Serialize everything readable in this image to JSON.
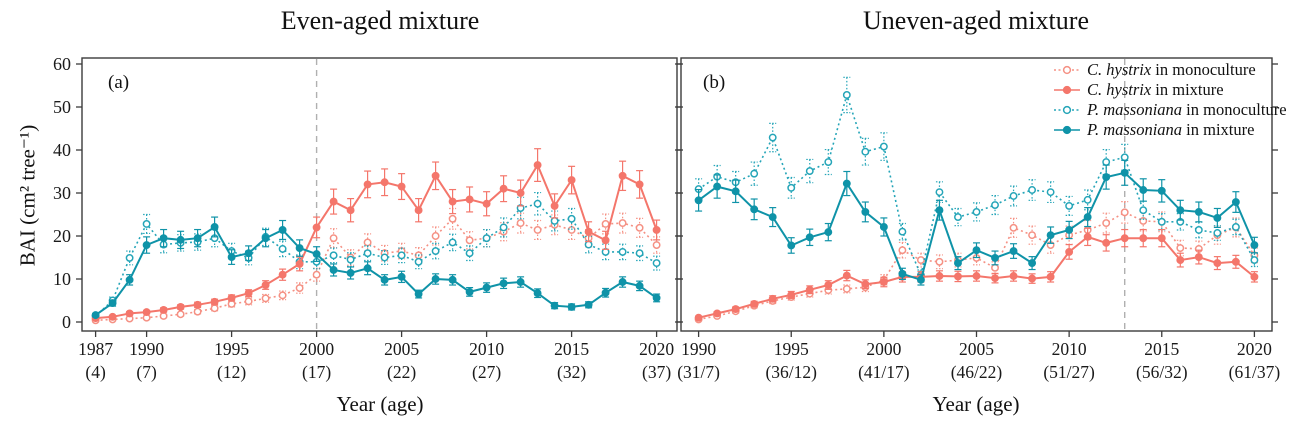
{
  "figure": {
    "titles": {
      "panel_a": "Even-aged mixture",
      "panel_b": "Uneven-aged mixture"
    },
    "panel_labels": {
      "a": "(a)",
      "b": "(b)"
    },
    "ylabel": "BAI (cm² tree⁻¹)",
    "xlabel": "Year (age)",
    "colors": {
      "ch_mono": "#f59184",
      "ch_mix": "#f4766b",
      "pm_mono": "#25a5b8",
      "pm_mix": "#0f93a8",
      "dashed_line": "#b0b0b0",
      "axis": "#3c3c3c",
      "text": "#1a1a1a"
    },
    "legend": [
      {
        "key": "ch_mono",
        "species": "C. hystrix",
        "rest": " in monoculture"
      },
      {
        "key": "ch_mix",
        "species": "C. hystrix",
        "rest": " in mixture"
      },
      {
        "key": "pm_mono",
        "species": "P. massoniana",
        "rest": " in monoculture"
      },
      {
        "key": "pm_mix",
        "species": "P. massoniana",
        "rest": " in mixture"
      }
    ]
  },
  "chart_data": [
    {
      "type": "line",
      "panel": "a",
      "title": "Even-aged mixture",
      "xlabel": "Year (age)",
      "ylabel": "BAI (cm2 tree-1)",
      "ylim": [
        0,
        60
      ],
      "y_ticks": [
        0,
        10,
        20,
        30,
        40,
        50,
        60
      ],
      "grid": false,
      "dashed_line_year": 2000,
      "x": [
        1987,
        1988,
        1989,
        1990,
        1991,
        1992,
        1993,
        1994,
        1995,
        1996,
        1997,
        1998,
        1999,
        2000,
        2001,
        2002,
        2003,
        2004,
        2005,
        2006,
        2007,
        2008,
        2009,
        2010,
        2011,
        2012,
        2013,
        2014,
        2015,
        2016,
        2017,
        2018,
        2019,
        2020
      ],
      "x_ticks": [
        {
          "value": 1987,
          "year": "1987",
          "age": "(4)"
        },
        {
          "value": 1990,
          "year": "1990",
          "age": "(7)"
        },
        {
          "value": 1995,
          "year": "1995",
          "age": "(12)"
        },
        {
          "value": 2000,
          "year": "2000",
          "age": "(17)"
        },
        {
          "value": 2005,
          "year": "2005",
          "age": "(22)"
        },
        {
          "value": 2010,
          "year": "2010",
          "age": "(27)"
        },
        {
          "value": 2015,
          "year": "2015",
          "age": "(32)"
        },
        {
          "value": 2020,
          "year": "2020",
          "age": "(37)"
        }
      ],
      "series": [
        {
          "key": "ch_mono",
          "name": "C. hystrix in monoculture",
          "marker": "open",
          "line": "dotted",
          "values": [
            0.4,
            0.6,
            0.8,
            1.0,
            1.4,
            1.8,
            2.4,
            3.2,
            4.2,
            4.8,
            5.5,
            6.2,
            7.9,
            11.0,
            19.5,
            15.0,
            18.5,
            16.0,
            16.5,
            15.5,
            20.0,
            24.0,
            19.0,
            19.5,
            21.0,
            23.0,
            21.4,
            22.6,
            21.4,
            19.5,
            22.8,
            23.0,
            21.9,
            17.9
          ],
          "err": [
            0.3,
            0.3,
            0.3,
            0.3,
            0.4,
            0.4,
            0.5,
            0.6,
            0.7,
            0.8,
            0.9,
            1.0,
            1.2,
            1.5,
            2.2,
            1.8,
            2.0,
            1.8,
            1.8,
            1.8,
            2.1,
            2.4,
            2.0,
            2.0,
            2.1,
            2.3,
            2.2,
            2.3,
            2.2,
            2.0,
            2.3,
            2.3,
            2.2,
            1.9
          ]
        },
        {
          "key": "ch_mix",
          "name": "C. hystrix in mixture",
          "marker": "filled",
          "line": "solid",
          "values": [
            0.9,
            1.2,
            2.0,
            2.3,
            2.8,
            3.5,
            4.0,
            4.7,
            5.6,
            6.7,
            8.6,
            11.0,
            13.5,
            22.0,
            28.0,
            26.0,
            32.0,
            32.5,
            31.5,
            26.0,
            34.0,
            28.0,
            28.5,
            27.5,
            31.0,
            30.0,
            36.5,
            27.0,
            33.0,
            21.0,
            19.0,
            34.0,
            32.0,
            21.4
          ],
          "err": [
            0.3,
            0.3,
            0.4,
            0.4,
            0.5,
            0.5,
            0.6,
            0.6,
            0.7,
            0.8,
            1.0,
            1.3,
            1.6,
            2.4,
            2.9,
            2.7,
            3.1,
            3.1,
            3.0,
            2.7,
            3.2,
            2.8,
            2.9,
            2.8,
            3.0,
            3.0,
            3.8,
            2.8,
            3.2,
            2.3,
            2.1,
            3.4,
            3.2,
            2.3
          ]
        },
        {
          "key": "pm_mono",
          "name": "P. massoniana in monoculture",
          "marker": "open",
          "line": "dotted",
          "values": [
            1.4,
            5.0,
            14.9,
            22.8,
            18.0,
            18.4,
            18.6,
            19.5,
            16.5,
            14.9,
            19.8,
            17.0,
            14.0,
            14.0,
            15.5,
            14.5,
            16.0,
            15.0,
            15.5,
            14.0,
            16.5,
            18.5,
            16.0,
            19.5,
            22.0,
            26.5,
            27.5,
            23.5,
            24.0,
            18.0,
            16.3,
            16.3,
            16.0,
            13.7
          ],
          "err": [
            0.4,
            0.8,
            1.6,
            2.2,
            1.9,
            1.9,
            1.9,
            2.0,
            1.8,
            1.6,
            2.0,
            1.8,
            1.6,
            1.6,
            1.7,
            1.6,
            1.7,
            1.6,
            1.7,
            1.6,
            1.8,
            1.9,
            1.7,
            2.0,
            2.2,
            2.5,
            2.6,
            2.3,
            2.4,
            1.9,
            1.8,
            1.8,
            1.7,
            1.6
          ]
        },
        {
          "key": "pm_mix",
          "name": "P. massoniana in mixture",
          "marker": "filled",
          "line": "solid",
          "values": [
            1.6,
            4.4,
            9.8,
            17.9,
            19.5,
            19.1,
            19.5,
            22.1,
            15.1,
            16.0,
            19.5,
            21.4,
            17.2,
            15.8,
            12.1,
            11.4,
            12.5,
            9.8,
            10.5,
            6.5,
            10.0,
            9.8,
            7.0,
            8.0,
            9.0,
            9.3,
            6.7,
            3.8,
            3.5,
            4.0,
            6.8,
            9.3,
            8.4,
            5.6
          ],
          "err": [
            0.4,
            0.7,
            1.2,
            1.9,
            2.0,
            2.0,
            2.0,
            2.3,
            1.7,
            1.7,
            2.0,
            2.2,
            1.9,
            1.7,
            1.4,
            1.4,
            1.5,
            1.2,
            1.3,
            0.9,
            1.2,
            1.2,
            1.0,
            1.1,
            1.2,
            1.2,
            1.0,
            0.7,
            0.7,
            0.7,
            1.0,
            1.2,
            1.1,
            0.9
          ]
        }
      ]
    },
    {
      "type": "line",
      "panel": "b",
      "title": "Uneven-aged mixture",
      "xlabel": "Year (age)",
      "ylabel": "BAI (cm2 tree-1)",
      "ylim": [
        0,
        60
      ],
      "y_ticks": [
        0,
        10,
        20,
        30,
        40,
        50,
        60
      ],
      "grid": false,
      "dashed_line_year": 2013,
      "x": [
        1990,
        1991,
        1992,
        1993,
        1994,
        1995,
        1996,
        1997,
        1998,
        1999,
        2000,
        2001,
        2002,
        2003,
        2004,
        2005,
        2006,
        2007,
        2008,
        2009,
        2010,
        2011,
        2012,
        2013,
        2014,
        2015,
        2016,
        2017,
        2018,
        2019,
        2020
      ],
      "x_ticks": [
        {
          "value": 1990,
          "year": "1990",
          "age": "(31/7)"
        },
        {
          "value": 1995,
          "year": "1995",
          "age": "(36/12)"
        },
        {
          "value": 2000,
          "year": "2000",
          "age": "(41/17)"
        },
        {
          "value": 2005,
          "year": "2005",
          "age": "(46/22)"
        },
        {
          "value": 2010,
          "year": "2010",
          "age": "(51/27)"
        },
        {
          "value": 2015,
          "year": "2015",
          "age": "(56/32)"
        },
        {
          "value": 2020,
          "year": "2020",
          "age": "(61/37)"
        }
      ],
      "series": [
        {
          "key": "ch_mono",
          "name": "C. hystrix in monoculture",
          "marker": "open",
          "line": "dotted",
          "values": [
            0.6,
            1.4,
            2.5,
            3.8,
            4.9,
            5.8,
            6.6,
            7.4,
            7.7,
            8.1,
            9.8,
            16.7,
            14.4,
            14.0,
            14.4,
            14.9,
            12.6,
            21.9,
            20.2,
            17.9,
            20.2,
            21.4,
            23.0,
            25.5,
            23.5,
            23.3,
            17.2,
            17.0,
            20.2,
            22.0,
            15.5
          ],
          "err": [
            0.3,
            0.3,
            0.4,
            0.5,
            0.6,
            0.7,
            0.8,
            0.9,
            0.9,
            1.0,
            1.2,
            1.8,
            1.6,
            1.6,
            1.6,
            1.6,
            1.4,
            2.2,
            2.1,
            1.9,
            2.1,
            2.2,
            2.3,
            2.5,
            2.3,
            2.3,
            1.8,
            1.8,
            2.1,
            2.2,
            1.7
          ]
        },
        {
          "key": "ch_mix",
          "name": "C. hystrix in mixture",
          "marker": "filled",
          "line": "solid",
          "values": [
            1.0,
            2.0,
            3.0,
            4.2,
            5.4,
            6.3,
            7.5,
            8.6,
            10.8,
            8.8,
            9.3,
            10.5,
            10.5,
            10.7,
            10.6,
            10.7,
            10.2,
            10.7,
            10.1,
            10.5,
            16.3,
            19.8,
            18.4,
            19.5,
            19.5,
            19.5,
            14.4,
            15.1,
            13.7,
            14.0,
            10.5
          ],
          "err": [
            0.3,
            0.4,
            0.5,
            0.6,
            0.7,
            0.8,
            0.9,
            1.0,
            1.2,
            1.0,
            1.1,
            1.2,
            1.2,
            1.2,
            1.2,
            1.2,
            1.1,
            1.2,
            1.1,
            1.2,
            1.7,
            2.0,
            1.9,
            2.0,
            2.0,
            2.0,
            1.6,
            1.6,
            1.5,
            1.5,
            1.2
          ]
        },
        {
          "key": "pm_mono",
          "name": "P. massoniana in monoculture",
          "marker": "open",
          "line": "dotted",
          "values": [
            30.9,
            33.8,
            32.5,
            34.5,
            42.9,
            31.2,
            35.1,
            37.2,
            52.8,
            39.6,
            40.8,
            21.0,
            10.9,
            30.2,
            24.4,
            25.6,
            27.2,
            29.3,
            30.7,
            30.2,
            27.0,
            28.4,
            37.2,
            38.3,
            26.0,
            23.3,
            23.3,
            21.4,
            20.7,
            22.1,
            14.4
          ],
          "err": [
            2.4,
            2.6,
            2.5,
            2.7,
            3.3,
            2.4,
            2.7,
            2.9,
            4.1,
            3.1,
            3.2,
            1.9,
            1.2,
            2.4,
            2.0,
            2.1,
            2.2,
            2.3,
            2.4,
            2.4,
            2.2,
            2.3,
            2.9,
            3.0,
            2.1,
            1.9,
            1.9,
            1.8,
            1.7,
            1.8,
            1.5
          ]
        },
        {
          "key": "pm_mix",
          "name": "P. massoniana in mixture",
          "marker": "filled",
          "line": "solid",
          "values": [
            28.3,
            31.5,
            30.4,
            26.2,
            24.4,
            17.8,
            19.7,
            20.9,
            32.2,
            25.6,
            22.1,
            11.2,
            9.8,
            26.0,
            13.7,
            16.7,
            14.9,
            16.5,
            13.7,
            20.2,
            21.4,
            24.4,
            33.7,
            34.7,
            30.7,
            30.5,
            26.0,
            25.6,
            24.2,
            27.9,
            17.9
          ],
          "err": [
            2.5,
            2.7,
            2.6,
            2.4,
            2.2,
            1.8,
            1.9,
            2.0,
            2.8,
            2.3,
            2.1,
            1.3,
            1.2,
            2.3,
            1.5,
            1.7,
            1.6,
            1.7,
            1.5,
            1.9,
            2.0,
            2.2,
            2.8,
            2.9,
            2.6,
            2.6,
            2.3,
            2.3,
            2.2,
            2.4,
            1.8
          ]
        }
      ]
    }
  ]
}
